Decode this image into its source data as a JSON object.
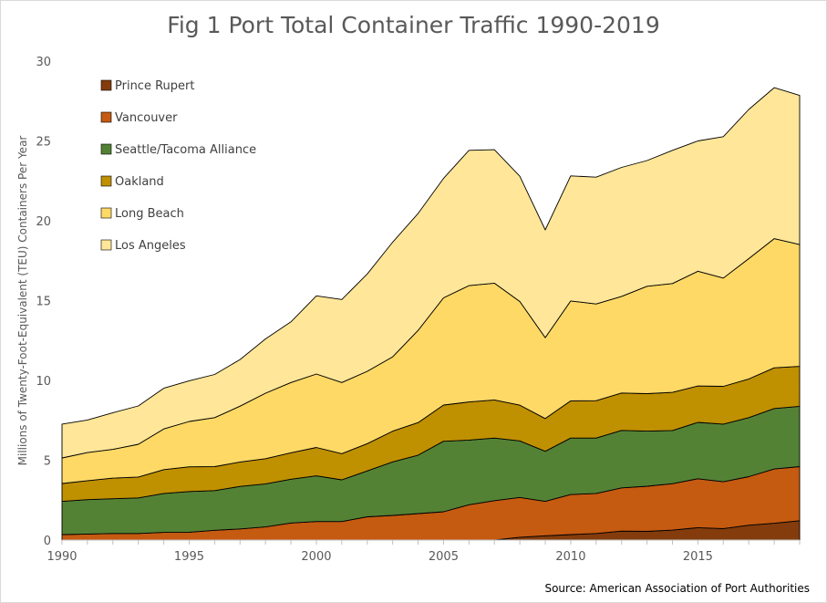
{
  "chart_data": {
    "type": "area",
    "stacked": true,
    "title": "Fig 1 Port Total Container Traffic 1990-2019",
    "ylabel": "Millions of Twenty-Foot-Equivalent (TEU) Containers Per Year",
    "xlabel": "",
    "source": "Source: American Association of Port Authorities",
    "xlim": [
      1990,
      2019
    ],
    "ylim": [
      0,
      30
    ],
    "x_ticks": [
      1990,
      1995,
      2000,
      2005,
      2010,
      2015
    ],
    "y_ticks": [
      0,
      5,
      10,
      15,
      20,
      25,
      30
    ],
    "legend_position": "top-left",
    "grid": false,
    "x": [
      1990,
      1991,
      1992,
      1993,
      1994,
      1995,
      1996,
      1997,
      1998,
      1999,
      2000,
      2001,
      2002,
      2003,
      2004,
      2005,
      2006,
      2007,
      2008,
      2009,
      2010,
      2011,
      2012,
      2013,
      2014,
      2015,
      2016,
      2017,
      2018,
      2019
    ],
    "series": [
      {
        "name": "Prince Rupert",
        "color": "#843c0c",
        "values": [
          0,
          0,
          0,
          0,
          0,
          0,
          0,
          0,
          0,
          0,
          0,
          0,
          0,
          0,
          0,
          0,
          0,
          0,
          0.18,
          0.27,
          0.34,
          0.41,
          0.56,
          0.54,
          0.62,
          0.78,
          0.72,
          0.93,
          1.05,
          1.21
        ]
      },
      {
        "name": "Vancouver",
        "color": "#c55a11",
        "values": [
          0.34,
          0.38,
          0.41,
          0.41,
          0.48,
          0.49,
          0.61,
          0.7,
          0.82,
          1.07,
          1.16,
          1.16,
          1.46,
          1.54,
          1.66,
          1.77,
          2.21,
          2.47,
          2.49,
          2.15,
          2.51,
          2.51,
          2.71,
          2.83,
          2.91,
          3.06,
          2.93,
          3.04,
          3.4,
          3.39
        ]
      },
      {
        "name": "Seattle/Tacoma Alliance",
        "color": "#548235",
        "values": [
          2.08,
          2.15,
          2.18,
          2.23,
          2.44,
          2.55,
          2.49,
          2.66,
          2.7,
          2.74,
          2.86,
          2.61,
          2.87,
          3.36,
          3.66,
          4.42,
          4.05,
          3.92,
          3.54,
          3.14,
          3.54,
          3.47,
          3.6,
          3.45,
          3.33,
          3.53,
          3.61,
          3.7,
          3.79,
          3.78
        ]
      },
      {
        "name": "Oakland",
        "color": "#bf9000",
        "values": [
          1.12,
          1.19,
          1.29,
          1.31,
          1.49,
          1.55,
          1.5,
          1.53,
          1.58,
          1.66,
          1.78,
          1.64,
          1.71,
          1.92,
          2.04,
          2.27,
          2.39,
          2.39,
          2.24,
          2.05,
          2.33,
          2.34,
          2.34,
          2.35,
          2.39,
          2.28,
          2.37,
          2.42,
          2.55,
          2.5
        ]
      },
      {
        "name": "Long Beach",
        "color": "#ffd966",
        "values": [
          1.6,
          1.76,
          1.8,
          2.05,
          2.55,
          2.84,
          3.07,
          3.5,
          4.1,
          4.4,
          4.6,
          4.46,
          4.53,
          4.66,
          5.78,
          6.71,
          7.29,
          7.31,
          6.49,
          5.07,
          6.26,
          6.06,
          6.05,
          6.73,
          6.82,
          7.19,
          6.78,
          7.54,
          8.09,
          7.63
        ]
      },
      {
        "name": "Los Angeles",
        "color": "#ffe699",
        "values": [
          2.12,
          2.04,
          2.3,
          2.4,
          2.55,
          2.55,
          2.7,
          2.92,
          3.4,
          3.8,
          4.9,
          5.2,
          6.1,
          7.18,
          7.32,
          7.48,
          8.47,
          8.36,
          7.85,
          6.75,
          7.83,
          7.94,
          8.08,
          7.87,
          8.34,
          8.16,
          8.86,
          9.34,
          9.46,
          9.34
        ]
      }
    ]
  }
}
